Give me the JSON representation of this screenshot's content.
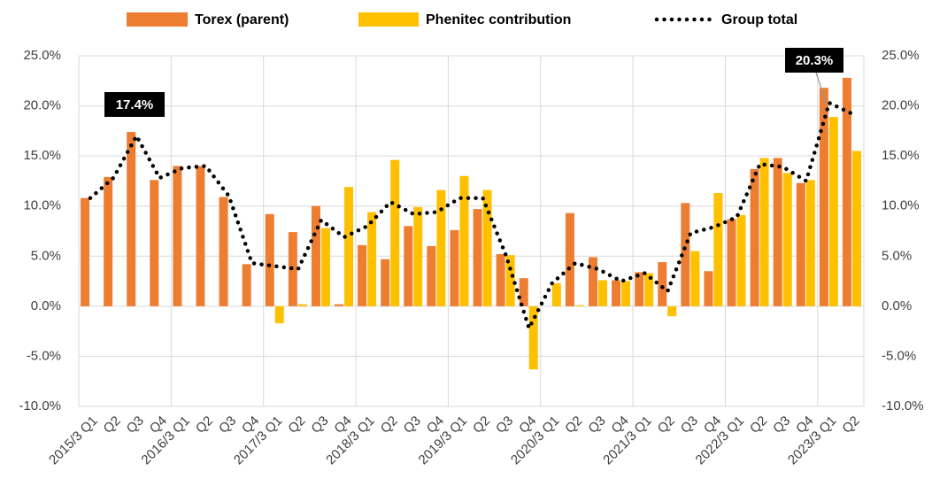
{
  "chart_data": {
    "type": "bar",
    "categories": [
      "2015/3 Q1",
      "Q2",
      "Q3",
      "Q4",
      "2016/3 Q1",
      "Q2",
      "Q3",
      "Q4",
      "2017/3 Q1",
      "Q2",
      "Q3",
      "Q4",
      "2018/3 Q1",
      "Q2",
      "Q3",
      "Q4",
      "2019/3 Q1",
      "Q2",
      "Q3",
      "Q4",
      "2020/3 Q1",
      "Q2",
      "Q3",
      "Q4",
      "2021/3 Q1",
      "Q2",
      "Q3",
      "Q4",
      "2022/3 Q1",
      "Q2",
      "Q3",
      "Q4",
      "2023/3 Q1",
      "Q2"
    ],
    "series": [
      {
        "name": "Torex (parent)",
        "type": "bar",
        "color": "#ED7D31",
        "values": [
          10.8,
          12.9,
          17.4,
          12.6,
          14.0,
          14.0,
          10.9,
          4.2,
          9.2,
          7.4,
          10.0,
          0.2,
          6.1,
          4.7,
          8.0,
          6.0,
          7.6,
          9.7,
          5.2,
          2.8,
          0,
          9.3,
          4.9,
          2.6,
          3.4,
          4.4,
          10.3,
          3.5,
          8.7,
          13.7,
          14.8,
          12.3,
          21.8,
          22.8
        ]
      },
      {
        "name": "Phenitec contribution",
        "type": "bar",
        "color": "#FFC000",
        "values": [
          null,
          null,
          null,
          null,
          null,
          null,
          null,
          null,
          -1.7,
          0.2,
          7.8,
          11.9,
          9.4,
          14.6,
          9.9,
          11.6,
          13.0,
          11.6,
          5.1,
          -6.3,
          2.3,
          0.1,
          2.6,
          2.5,
          3.3,
          -1.0,
          5.5,
          11.3,
          9.1,
          14.8,
          13.3,
          12.6,
          18.9,
          15.5
        ]
      },
      {
        "name": "Group total",
        "type": "line",
        "color": "#000000",
        "values": [
          10.8,
          12.8,
          17.0,
          12.8,
          13.8,
          14.0,
          11.0,
          4.3,
          4.0,
          3.7,
          8.6,
          6.9,
          8.0,
          10.4,
          9.2,
          9.4,
          10.8,
          10.8,
          5.1,
          -2.2,
          2.3,
          4.3,
          3.7,
          2.5,
          3.3,
          1.5,
          7.3,
          7.9,
          8.9,
          14.2,
          13.9,
          12.5,
          20.3,
          19.2
        ]
      }
    ],
    "annotations": [
      "17.4%",
      "20.3%"
    ],
    "ylim": [
      -10,
      25
    ],
    "yticks": [
      {
        "value": -10,
        "label": "-10.0%"
      },
      {
        "value": -5,
        "label": "-5.0%"
      },
      {
        "value": 0,
        "label": "0.0%"
      },
      {
        "value": 5,
        "label": "5.0%"
      },
      {
        "value": 10,
        "label": "10.0%"
      },
      {
        "value": 15,
        "label": "15.0%"
      },
      {
        "value": 20,
        "label": "20.0%"
      },
      {
        "value": 25,
        "label": "25.0%"
      }
    ],
    "y2lim": [
      -10,
      25
    ],
    "y2ticks": [
      {
        "value": -10,
        "label": "-10.0%"
      },
      {
        "value": -5,
        "label": "-5.0%"
      },
      {
        "value": 0,
        "label": "0.0%"
      },
      {
        "value": 5,
        "label": "5.0%"
      },
      {
        "value": 10,
        "label": "10.0%"
      },
      {
        "value": 15,
        "label": "15.0%"
      },
      {
        "value": 20,
        "label": "20.0%"
      },
      {
        "value": 25,
        "label": "25.0%"
      }
    ],
    "grid": true,
    "legend": "top"
  }
}
